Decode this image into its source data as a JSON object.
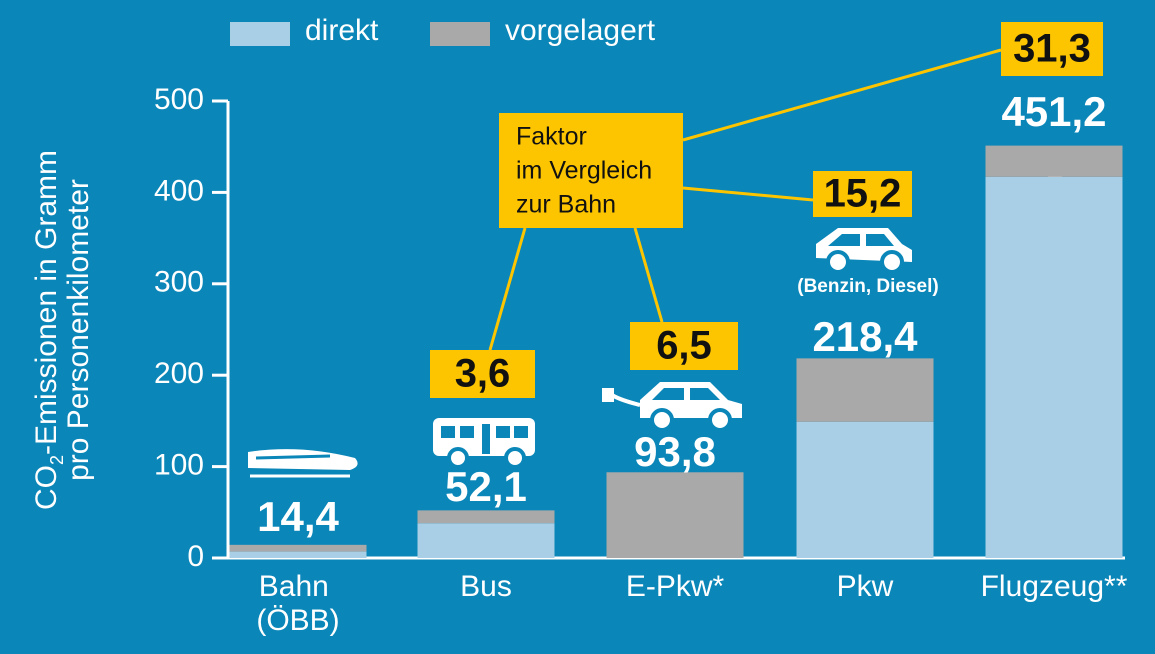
{
  "chart_data": {
    "type": "stacked_bar",
    "categories": [
      "Bahn (ÖBB)",
      "Bus",
      "E-Pkw*",
      "Pkw",
      "Flugzeug**"
    ],
    "series": [
      {
        "name": "direkt",
        "color": "#a8cfe6",
        "values": [
          7,
          38,
          0,
          149,
          417
        ]
      },
      {
        "name": "vorgelagert",
        "color": "#a9a9a9",
        "values": [
          7.4,
          14.1,
          93.8,
          69.4,
          34.2
        ]
      }
    ],
    "totals": [
      14.4,
      52.1,
      93.8,
      218.4,
      451.2
    ],
    "total_labels": [
      "14,4",
      "52,1",
      "93,8",
      "218,4",
      "451,2"
    ],
    "factors": [
      null,
      3.6,
      6.5,
      15.2,
      31.3
    ],
    "factor_labels": [
      null,
      "3,6",
      "6,5",
      "15,2",
      "31,3"
    ],
    "annotation": [
      "Faktor",
      "im Vergleich",
      "zur Bahn"
    ],
    "pkw_note": "(Benzin, Diesel)",
    "y_axis_label": {
      "line1": [
        "CO",
        "2",
        "-Emissionen in Gramm"
      ],
      "line2": "pro Personenkilometer"
    },
    "ylim": [
      0,
      500
    ],
    "yticks": [
      0,
      100,
      200,
      300,
      400,
      500
    ],
    "highlight_color": "#fdc500",
    "background": "#0a86b8"
  }
}
